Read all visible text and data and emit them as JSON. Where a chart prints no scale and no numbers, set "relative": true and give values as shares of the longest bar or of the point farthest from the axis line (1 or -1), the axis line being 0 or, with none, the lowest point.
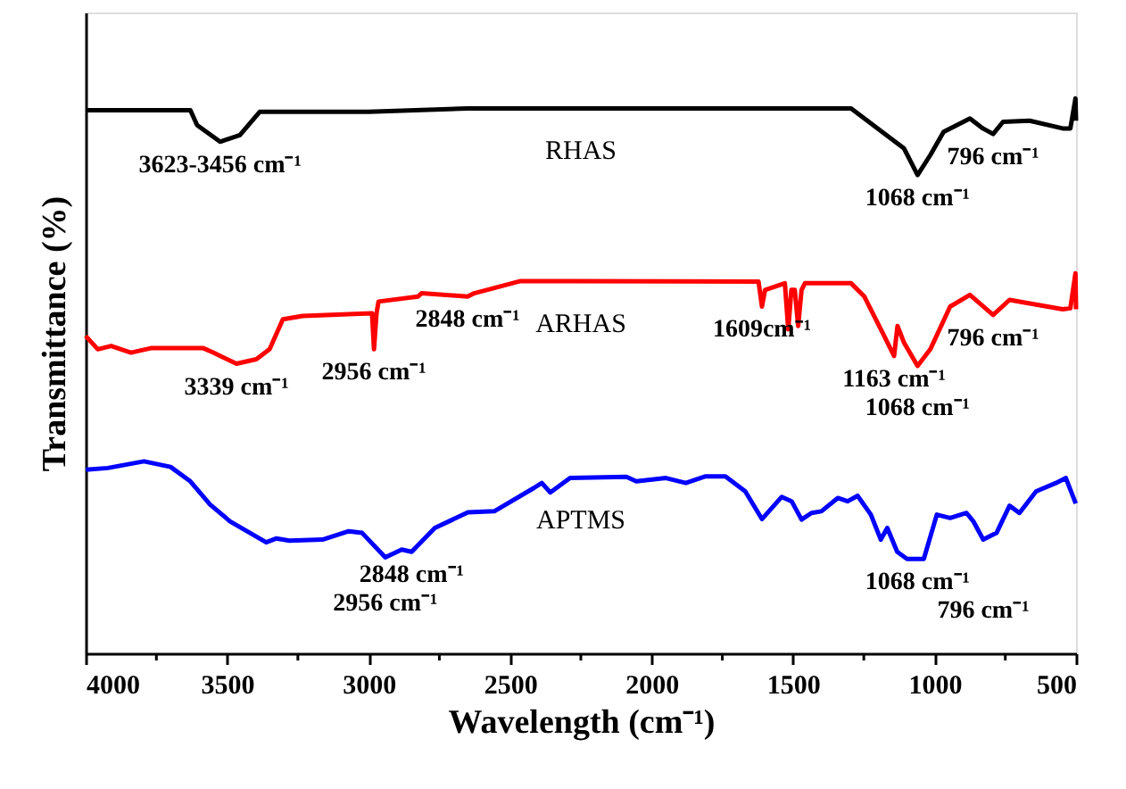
{
  "chart_data": {
    "type": "line",
    "relative": true,
    "xlabel": "Wavelength (cm⁻¹)",
    "ylabel": "Transmittance (%)",
    "xlim": [
      4000,
      500
    ],
    "xticks": [
      4000,
      {
        "value": 3750,
        "label": null
      },
      3500,
      {
        "value": 3250,
        "label": null
      },
      3000,
      {
        "value": 2750,
        "label": null
      },
      2500,
      {
        "value": 2250,
        "label": null
      },
      2000,
      {
        "value": 1750,
        "label": null
      },
      1500,
      {
        "value": 1250,
        "label": null
      },
      1000,
      {
        "value": 750,
        "label": null
      },
      500
    ],
    "grid": false,
    "legend": false,
    "marker": "none",
    "line_style": "solid",
    "series": [
      {
        "name": "RHAS",
        "color": "#000000",
        "x": [
          4000,
          3630,
          3606,
          3525,
          3455,
          3385,
          3000,
          2650,
          1295,
          1201,
          1108,
          1060,
          1015,
          968,
          875,
          829,
          793,
          758,
          664,
          547,
          520,
          502,
          500
        ],
        "values": [
          0.979,
          0.979,
          0.952,
          0.922,
          0.934,
          0.976,
          0.976,
          0.982,
          0.982,
          0.946,
          0.91,
          0.862,
          0.898,
          0.94,
          0.964,
          0.946,
          0.936,
          0.958,
          0.96,
          0.946,
          0.946,
          1.0,
          0.96
        ]
      },
      {
        "name": "ARHAS",
        "color": "#ff0000",
        "x": [
          4000,
          3957,
          3910,
          3840,
          3770,
          3584,
          3549,
          3467,
          3397,
          3350,
          3303,
          3233,
          2988,
          2981,
          2972,
          2965,
          2825,
          2813,
          2650,
          2627,
          2463,
          2276,
          1622,
          1610,
          1599,
          1529,
          1517,
          1506,
          1494,
          1482,
          1470,
          1458,
          1295,
          1248,
          1178,
          1143,
          1131,
          1108,
          1060,
          1015,
          945,
          875,
          793,
          735,
          547,
          520,
          502,
          500
        ],
        "values": [
          0.572,
          0.548,
          0.554,
          0.542,
          0.55,
          0.55,
          0.542,
          0.522,
          0.53,
          0.548,
          0.602,
          0.608,
          0.613,
          0.548,
          0.613,
          0.634,
          0.643,
          0.649,
          0.643,
          0.649,
          0.671,
          0.671,
          0.67,
          0.625,
          0.655,
          0.667,
          0.584,
          0.655,
          0.655,
          0.59,
          0.655,
          0.667,
          0.667,
          0.643,
          0.572,
          0.536,
          0.59,
          0.56,
          0.518,
          0.548,
          0.625,
          0.646,
          0.61,
          0.637,
          0.62,
          0.622,
          0.685,
          0.62
        ]
      },
      {
        "name": "APTMS",
        "color": "#0000ff",
        "x": [
          3999,
          3922,
          3794,
          3700,
          3630,
          3560,
          3490,
          3362,
          3327,
          3280,
          3163,
          3070,
          3023,
          2941,
          2883,
          2848,
          2766,
          2649,
          2556,
          2416,
          2388,
          2358,
          2288,
          2089,
          2054,
          1949,
          1879,
          1809,
          1739,
          1669,
          1610,
          1540,
          1505,
          1470,
          1435,
          1400,
          1342,
          1307,
          1272,
          1225,
          1190,
          1167,
          1132,
          1097,
          1038,
          992,
          945,
          887,
          863,
          828,
          781,
          735,
          700,
          641,
          571,
          536,
          501
        ],
        "values": [
          0.331,
          0.334,
          0.346,
          0.336,
          0.31,
          0.268,
          0.238,
          0.2,
          0.207,
          0.203,
          0.205,
          0.22,
          0.217,
          0.173,
          0.187,
          0.183,
          0.226,
          0.254,
          0.256,
          0.298,
          0.307,
          0.29,
          0.316,
          0.318,
          0.31,
          0.316,
          0.307,
          0.319,
          0.319,
          0.292,
          0.242,
          0.282,
          0.274,
          0.241,
          0.253,
          0.256,
          0.28,
          0.274,
          0.284,
          0.25,
          0.205,
          0.226,
          0.183,
          0.17,
          0.17,
          0.25,
          0.244,
          0.253,
          0.238,
          0.205,
          0.217,
          0.266,
          0.253,
          0.292,
          0.307,
          0.316,
          0.27
        ]
      }
    ],
    "annotations": [
      {
        "text": "3623-3456 cm⁻¹",
        "x": 3525,
        "y": 0.922
      },
      {
        "text": "1068 cm⁻¹",
        "x": 1060,
        "y": 0.862
      },
      {
        "text": "796 cm⁻¹",
        "x": 793,
        "y": 0.936
      },
      {
        "text": "3339 cm⁻¹",
        "x": 3467,
        "y": 0.522
      },
      {
        "text": "2956 cm⁻¹",
        "x": 2981,
        "y": 0.548
      },
      {
        "text": "2848 cm⁻¹",
        "x": 2650,
        "y": 0.643
      },
      {
        "text": "1609cm⁻¹",
        "x": 1610,
        "y": 0.625
      },
      {
        "text": "1163 cm⁻¹",
        "x": 1143,
        "y": 0.536
      },
      {
        "text": "1068 cm⁻¹",
        "x": 1060,
        "y": 0.518
      },
      {
        "text": "796 cm⁻¹",
        "x": 793,
        "y": 0.61
      },
      {
        "text": "2848 cm⁻¹",
        "x": 2848,
        "y": 0.183
      },
      {
        "text": "2956 cm⁻¹",
        "x": 2941,
        "y": 0.173
      },
      {
        "text": "1068 cm⁻¹",
        "x": 1060,
        "y": 0.17
      },
      {
        "text": "796 cm⁻¹",
        "x": 828,
        "y": 0.205
      }
    ]
  }
}
